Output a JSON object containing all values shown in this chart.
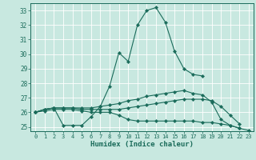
{
  "xlabel": "Humidex (Indice chaleur)",
  "xlim": [
    -0.5,
    23.5
  ],
  "ylim": [
    24.7,
    33.5
  ],
  "yticks": [
    25,
    26,
    27,
    28,
    29,
    30,
    31,
    32,
    33
  ],
  "xticks": [
    0,
    1,
    2,
    3,
    4,
    5,
    6,
    7,
    8,
    9,
    10,
    11,
    12,
    13,
    14,
    15,
    16,
    17,
    18,
    19,
    20,
    21,
    22,
    23
  ],
  "bg_color": "#c8e8e0",
  "line_color": "#1a6b5a",
  "grid_color": "#ffffff",
  "lines": [
    {
      "x": [
        0,
        1,
        2,
        3,
        4,
        5,
        6,
        7,
        8,
        9,
        10,
        11,
        12,
        13,
        14,
        15,
        16,
        17,
        18
      ],
      "y": [
        26.0,
        26.2,
        26.3,
        25.1,
        25.1,
        25.1,
        25.7,
        26.4,
        27.8,
        30.1,
        29.5,
        32.0,
        33.0,
        33.2,
        32.2,
        30.2,
        29.0,
        28.6,
        28.5
      ]
    },
    {
      "x": [
        0,
        1,
        2,
        3,
        4,
        5,
        6,
        7,
        8,
        9,
        10,
        11,
        12,
        13,
        14,
        15,
        16,
        17,
        18,
        19,
        20,
        21,
        22
      ],
      "y": [
        26.0,
        26.2,
        26.3,
        26.3,
        26.3,
        26.3,
        26.3,
        26.4,
        26.5,
        26.6,
        26.8,
        26.9,
        27.1,
        27.2,
        27.3,
        27.4,
        27.5,
        27.3,
        27.2,
        26.7,
        25.5,
        25.1,
        24.9
      ]
    },
    {
      "x": [
        0,
        1,
        2,
        3,
        4,
        5,
        6,
        7,
        8,
        9,
        10,
        11,
        12,
        13,
        14,
        15,
        16,
        17,
        18,
        19,
        20,
        21,
        22
      ],
      "y": [
        26.0,
        26.2,
        26.3,
        26.3,
        26.3,
        26.2,
        26.2,
        26.2,
        26.2,
        26.2,
        26.3,
        26.4,
        26.5,
        26.6,
        26.7,
        26.8,
        26.9,
        26.9,
        26.9,
        26.8,
        26.4,
        25.8,
        25.2
      ]
    },
    {
      "x": [
        0,
        1,
        2,
        3,
        4,
        5,
        6,
        7,
        8,
        9,
        10,
        11,
        12,
        13,
        14,
        15,
        16,
        17,
        18,
        19,
        20,
        21,
        22,
        23
      ],
      "y": [
        26.0,
        26.1,
        26.2,
        26.2,
        26.2,
        26.1,
        26.0,
        26.0,
        26.0,
        25.8,
        25.5,
        25.4,
        25.4,
        25.4,
        25.4,
        25.4,
        25.4,
        25.4,
        25.3,
        25.3,
        25.2,
        25.1,
        24.9,
        24.75
      ]
    }
  ]
}
